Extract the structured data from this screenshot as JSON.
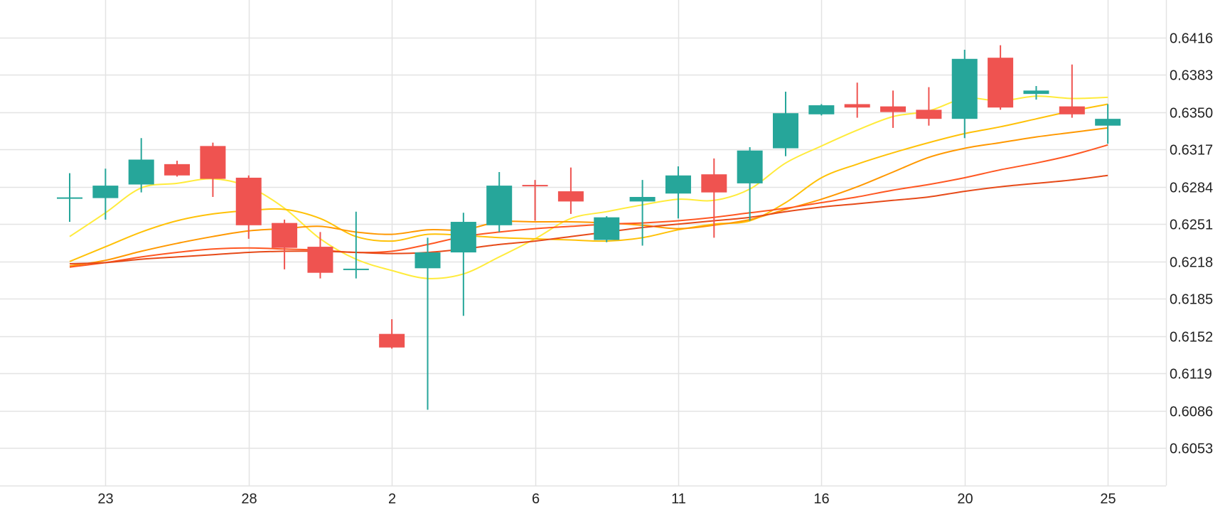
{
  "chart_data": {
    "type": "candlestick",
    "title": "",
    "xlabel": "",
    "ylabel": "",
    "x_ticks": [
      {
        "index": 1,
        "label": "23"
      },
      {
        "index": 5,
        "label": "28"
      },
      {
        "index": 9,
        "label": "2"
      },
      {
        "index": 13,
        "label": "6"
      },
      {
        "index": 17,
        "label": "11"
      },
      {
        "index": 21,
        "label": "16"
      },
      {
        "index": 25,
        "label": "20"
      },
      {
        "index": 29,
        "label": "25"
      }
    ],
    "y_ticks": [
      "0.6416",
      "0.6383",
      "0.6350",
      "0.6317",
      "0.6284",
      "0.6251",
      "0.6218",
      "0.6185",
      "0.6152",
      "0.6119",
      "0.6086",
      "0.6053"
    ],
    "ylim": [
      0.602,
      0.6449
    ],
    "grid": true,
    "up_color": "#26a69a",
    "down_color": "#ef5350",
    "candles": [
      {
        "o": 0.6274,
        "h": 0.6296,
        "l": 0.6253,
        "c": 0.6274
      },
      {
        "o": 0.6274,
        "h": 0.63,
        "l": 0.6255,
        "c": 0.6285
      },
      {
        "o": 0.6286,
        "h": 0.6327,
        "l": 0.6279,
        "c": 0.6308
      },
      {
        "o": 0.6304,
        "h": 0.6307,
        "l": 0.6293,
        "c": 0.6294
      },
      {
        "o": 0.632,
        "h": 0.6323,
        "l": 0.6275,
        "c": 0.6291
      },
      {
        "o": 0.6292,
        "h": 0.6294,
        "l": 0.6238,
        "c": 0.625
      },
      {
        "o": 0.6252,
        "h": 0.6255,
        "l": 0.6211,
        "c": 0.623
      },
      {
        "o": 0.6231,
        "h": 0.6244,
        "l": 0.6203,
        "c": 0.6208
      },
      {
        "o": 0.6211,
        "h": 0.6262,
        "l": 0.6203,
        "c": 0.6211
      },
      {
        "o": 0.6154,
        "h": 0.6167,
        "l": 0.6141,
        "c": 0.6142
      },
      {
        "o": 0.6212,
        "h": 0.6239,
        "l": 0.6087,
        "c": 0.6226
      },
      {
        "o": 0.6226,
        "h": 0.6261,
        "l": 0.617,
        "c": 0.6253
      },
      {
        "o": 0.625,
        "h": 0.6297,
        "l": 0.6244,
        "c": 0.6285
      },
      {
        "o": 0.6285,
        "h": 0.629,
        "l": 0.6254,
        "c": 0.6284
      },
      {
        "o": 0.628,
        "h": 0.6301,
        "l": 0.626,
        "c": 0.6271
      },
      {
        "o": 0.6237,
        "h": 0.6258,
        "l": 0.6235,
        "c": 0.6257
      },
      {
        "o": 0.6271,
        "h": 0.629,
        "l": 0.6232,
        "c": 0.6275
      },
      {
        "o": 0.6278,
        "h": 0.6302,
        "l": 0.6256,
        "c": 0.6294
      },
      {
        "o": 0.6295,
        "h": 0.6309,
        "l": 0.6239,
        "c": 0.6279
      },
      {
        "o": 0.6287,
        "h": 0.6319,
        "l": 0.6254,
        "c": 0.6316
      },
      {
        "o": 0.6318,
        "h": 0.6368,
        "l": 0.6311,
        "c": 0.6349
      },
      {
        "o": 0.6348,
        "h": 0.6357,
        "l": 0.6347,
        "c": 0.6356
      },
      {
        "o": 0.6357,
        "h": 0.6376,
        "l": 0.6345,
        "c": 0.6354
      },
      {
        "o": 0.6355,
        "h": 0.6369,
        "l": 0.6336,
        "c": 0.635
      },
      {
        "o": 0.6352,
        "h": 0.6372,
        "l": 0.6338,
        "c": 0.6344
      },
      {
        "o": 0.6344,
        "h": 0.6405,
        "l": 0.6327,
        "c": 0.6397
      },
      {
        "o": 0.6398,
        "h": 0.6409,
        "l": 0.6352,
        "c": 0.6354
      },
      {
        "o": 0.6366,
        "h": 0.6373,
        "l": 0.6361,
        "c": 0.6369
      },
      {
        "o": 0.6355,
        "h": 0.6392,
        "l": 0.6345,
        "c": 0.6348
      },
      {
        "o": 0.6338,
        "h": 0.6357,
        "l": 0.6322,
        "c": 0.6344
      }
    ],
    "moving_averages": [
      {
        "color": "#ffeb3b",
        "values": [
          0.624,
          0.6261,
          0.6283,
          0.6287,
          0.6291,
          0.6284,
          0.6265,
          0.6238,
          0.622,
          0.621,
          0.6203,
          0.6207,
          0.6222,
          0.6238,
          0.6256,
          0.6262,
          0.6268,
          0.6273,
          0.6272,
          0.6282,
          0.6305,
          0.632,
          0.6334,
          0.6346,
          0.6351,
          0.6362,
          0.636,
          0.6364,
          0.6362,
          0.6363
        ]
      },
      {
        "color": "#ffc107",
        "values": [
          0.6218,
          0.6231,
          0.6244,
          0.6254,
          0.626,
          0.6263,
          0.6264,
          0.6256,
          0.624,
          0.6236,
          0.6242,
          0.6241,
          0.6239,
          0.6238,
          0.6237,
          0.6236,
          0.6239,
          0.6246,
          0.6251,
          0.6254,
          0.627,
          0.6292,
          0.6304,
          0.6314,
          0.6323,
          0.6331,
          0.6337,
          0.6344,
          0.6351,
          0.6357
        ]
      },
      {
        "color": "#ff9800",
        "values": [
          0.6214,
          0.6219,
          0.6227,
          0.6234,
          0.624,
          0.6245,
          0.6247,
          0.6249,
          0.6244,
          0.6242,
          0.6246,
          0.6246,
          0.6253,
          0.6253,
          0.6253,
          0.6252,
          0.625,
          0.6247,
          0.625,
          0.6255,
          0.6264,
          0.6273,
          0.6284,
          0.6297,
          0.631,
          0.6318,
          0.6323,
          0.6328,
          0.6332,
          0.6336
        ]
      },
      {
        "color": "#ff5722",
        "values": [
          0.6213,
          0.6217,
          0.6222,
          0.6226,
          0.6229,
          0.623,
          0.6229,
          0.6228,
          0.6226,
          0.6227,
          0.6233,
          0.624,
          0.6244,
          0.6247,
          0.6249,
          0.6251,
          0.6252,
          0.6254,
          0.6257,
          0.6261,
          0.6265,
          0.627,
          0.6275,
          0.6281,
          0.6286,
          0.6292,
          0.6299,
          0.6305,
          0.6312,
          0.6321
        ]
      },
      {
        "color": "#e64a19",
        "values": [
          0.6216,
          0.6217,
          0.622,
          0.6222,
          0.6224,
          0.6226,
          0.6227,
          0.6227,
          0.6226,
          0.6225,
          0.6226,
          0.6229,
          0.6233,
          0.6236,
          0.624,
          0.6244,
          0.6248,
          0.6251,
          0.6254,
          0.6257,
          0.6262,
          0.6266,
          0.6269,
          0.6272,
          0.6275,
          0.628,
          0.6284,
          0.6287,
          0.629,
          0.6294
        ]
      }
    ]
  }
}
